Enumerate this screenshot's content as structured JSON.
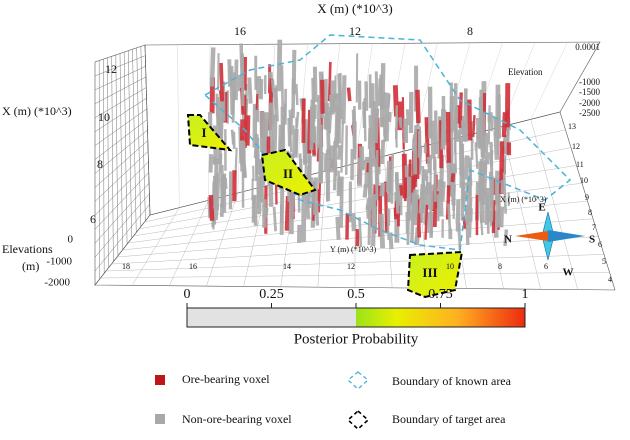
{
  "axes": {
    "top_title": "X (m) (*10^3)",
    "top_ticks": [
      "16",
      "12",
      "8"
    ],
    "left_title": "X (m) (*10^3)",
    "left_ticks": [
      "12",
      "10",
      "8",
      "6"
    ],
    "elevation_title": [
      "Elevations",
      "(m)"
    ],
    "elevation_ticks": [
      "0",
      "-1000",
      "-2000"
    ],
    "right_elevation_title": "Elevation",
    "right_elevation_ticks": [
      "0.0001",
      "-1000",
      "-1500",
      "-2000",
      "-2500"
    ],
    "bottom_title": "Y (m) (*10^3)",
    "bottom_ticks": [
      "18",
      "16",
      "14",
      "12",
      "10",
      "8",
      "6"
    ],
    "right_title": "X (m) (*10^3)",
    "right_ticks": [
      "13",
      "12",
      "11",
      "10",
      "9",
      "8",
      "7",
      "6",
      "5",
      "4"
    ]
  },
  "compass": [
    "E",
    "S",
    "W",
    "N"
  ],
  "regions": [
    "I",
    "II",
    "III"
  ],
  "colorbar": {
    "title": "Posterior Probability",
    "range": [
      0,
      1
    ],
    "ticks": [
      0,
      0.25,
      0.5,
      0.75,
      1
    ]
  },
  "legend": [
    "Ore-bearing voxel",
    "Non-ore-bearing voxel",
    "Boundary of known area",
    "Boundary of target area"
  ]
}
